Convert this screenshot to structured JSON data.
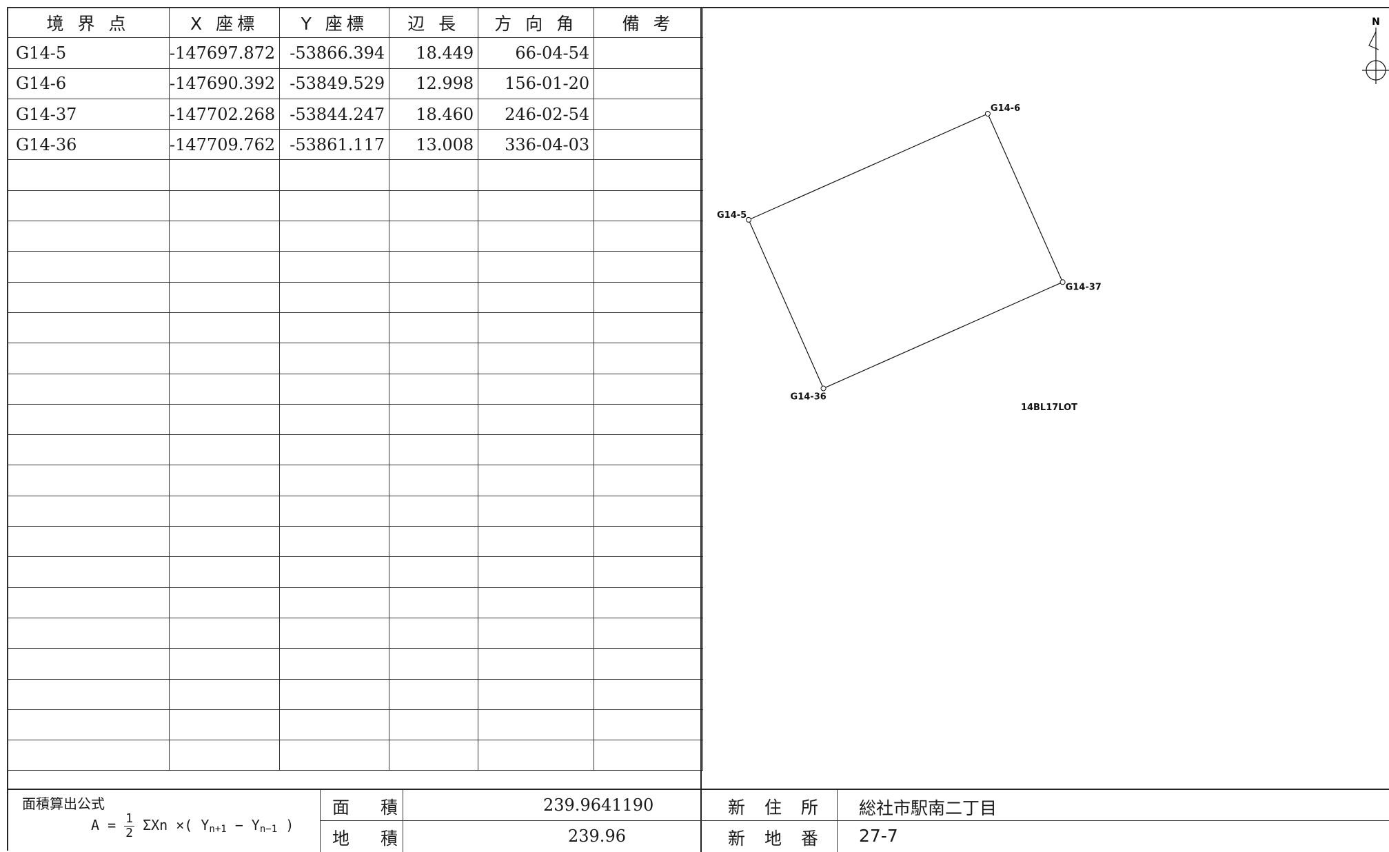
{
  "table": {
    "headers": [
      "境 界 点",
      "X 座標",
      "Y 座標",
      "辺 長",
      "方 向 角",
      "備 考"
    ],
    "rows": [
      [
        "G14-5",
        "-147697.872",
        "-53866.394",
        "18.449",
        "66-04-54",
        ""
      ],
      [
        "G14-6",
        "-147690.392",
        "-53849.529",
        "12.998",
        "156-01-20",
        ""
      ],
      [
        "G14-37",
        "-147702.268",
        "-53844.247",
        "18.460",
        "246-02-54",
        ""
      ],
      [
        "G14-36",
        "-147709.762",
        "-53861.117",
        "13.008",
        "336-04-03",
        ""
      ]
    ],
    "empty_rows": 20
  },
  "plan": {
    "north_label": "N",
    "lot_label": "14BL17LOT",
    "points": [
      {
        "name": "G14-5",
        "x": -147697.872,
        "y": -53866.394
      },
      {
        "name": "G14-6",
        "x": -147690.392,
        "y": -53849.529
      },
      {
        "name": "G14-37",
        "x": -147702.268,
        "y": -53844.247
      },
      {
        "name": "G14-36",
        "x": -147709.762,
        "y": -53861.117
      }
    ]
  },
  "bottom": {
    "formula_title": "面積算出公式",
    "formula_prefix": "A =",
    "formula_frac_num": "1",
    "formula_frac_den": "2",
    "formula_sum": "ΣXn ×( Y",
    "formula_sub1": "n+1",
    "formula_mid": " − Y",
    "formula_sub2": "n−1",
    "formula_end": " )",
    "area_label": "面　積",
    "area_value": "239.9641190",
    "land_area_label": "地　積",
    "land_area_value": "239.96",
    "new_address_label": "新 住 所",
    "new_address_value": "総社市駅南二丁目",
    "new_lot_label": "新 地 番",
    "new_lot_value": "27-7"
  }
}
